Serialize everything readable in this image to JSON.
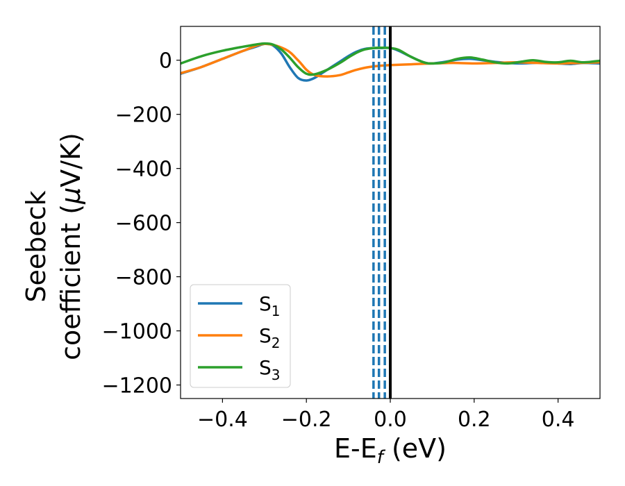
{
  "chart_data": {
    "type": "line",
    "xlabel": "E-E",
    "xlabel_sub": "f",
    "xlabel_unit": " (eV)",
    "ylabel_line1": "Seebeck",
    "ylabel_line2": "coefficient  (",
    "ylabel_mu": "μ",
    "ylabel_unit": "V/K)",
    "xlim": [
      -0.5,
      0.5
    ],
    "ylim": [
      -1250,
      125
    ],
    "x_ticks": [
      -0.4,
      -0.2,
      0.0,
      0.2,
      0.4
    ],
    "x_tick_labels": [
      "−0.4",
      "−0.2",
      "0.0",
      "0.2",
      "0.4"
    ],
    "y_ticks": [
      0,
      -200,
      -400,
      -600,
      -800,
      -1000,
      -1200
    ],
    "y_tick_labels": [
      "0",
      "−200",
      "−400",
      "−600",
      "−800",
      "−1000",
      "−1200"
    ],
    "legend_position": "lower-left",
    "grid": false,
    "series": [
      {
        "name": "S",
        "subscript": "1",
        "color": "#1f77b4",
        "x": [
          -0.5,
          -0.45,
          -0.4,
          -0.35,
          -0.32,
          -0.3,
          -0.28,
          -0.26,
          -0.24,
          -0.22,
          -0.2,
          -0.18,
          -0.16,
          -0.14,
          -0.12,
          -0.1,
          -0.08,
          -0.06,
          -0.04,
          -0.02,
          0.0,
          0.02,
          0.05,
          0.08,
          0.1,
          0.13,
          0.16,
          0.19,
          0.22,
          0.25,
          0.28,
          0.31,
          0.34,
          0.37,
          0.4,
          0.43,
          0.46,
          0.5
        ],
        "y": [
          -50,
          -25,
          5,
          35,
          50,
          60,
          55,
          25,
          -25,
          -65,
          -75,
          -65,
          -45,
          -25,
          -5,
          15,
          32,
          42,
          45,
          45,
          45,
          35,
          12,
          -8,
          -12,
          -6,
          2,
          5,
          0,
          -6,
          -10,
          -12,
          -10,
          -8,
          -12,
          -14,
          -10,
          -12
        ]
      },
      {
        "name": "S",
        "subscript": "2",
        "color": "#ff7f0e",
        "x": [
          -0.5,
          -0.45,
          -0.4,
          -0.35,
          -0.3,
          -0.25,
          -0.22,
          -0.2,
          -0.18,
          -0.15,
          -0.12,
          -0.1,
          -0.08,
          -0.05,
          -0.02,
          0.0,
          0.05,
          0.1,
          0.15,
          0.2,
          0.25,
          0.3,
          0.35,
          0.4,
          0.45,
          0.5
        ],
        "y": [
          -48,
          -25,
          5,
          35,
          60,
          40,
          0,
          -35,
          -55,
          -60,
          -55,
          -45,
          -35,
          -25,
          -20,
          -18,
          -15,
          -12,
          -10,
          -12,
          -10,
          -8,
          -10,
          -12,
          -10,
          -8
        ]
      },
      {
        "name": "S",
        "subscript": "3",
        "color": "#2ca02c",
        "x": [
          -0.5,
          -0.45,
          -0.4,
          -0.35,
          -0.32,
          -0.3,
          -0.28,
          -0.26,
          -0.24,
          -0.22,
          -0.2,
          -0.18,
          -0.15,
          -0.12,
          -0.1,
          -0.08,
          -0.06,
          -0.04,
          -0.02,
          0.0,
          0.02,
          0.05,
          0.08,
          0.1,
          0.13,
          0.16,
          0.19,
          0.22,
          0.25,
          0.28,
          0.31,
          0.34,
          0.37,
          0.4,
          0.43,
          0.46,
          0.5
        ],
        "y": [
          -12,
          15,
          35,
          50,
          58,
          62,
          58,
          40,
          10,
          -25,
          -50,
          -52,
          -35,
          -10,
          10,
          28,
          40,
          45,
          46,
          45,
          38,
          12,
          -8,
          -12,
          -8,
          5,
          10,
          2,
          -8,
          -12,
          -6,
          0,
          -6,
          -8,
          -2,
          -8,
          -2
        ]
      }
    ],
    "vlines": [
      {
        "x": 0.0,
        "style": "solid",
        "color": "#000000"
      },
      {
        "x": -0.04,
        "style": "dashed",
        "color": "#1f77b4"
      },
      {
        "x": -0.027,
        "style": "dashed",
        "color": "#1f77b4"
      },
      {
        "x": -0.013,
        "style": "dashed",
        "color": "#1f77b4"
      }
    ]
  }
}
